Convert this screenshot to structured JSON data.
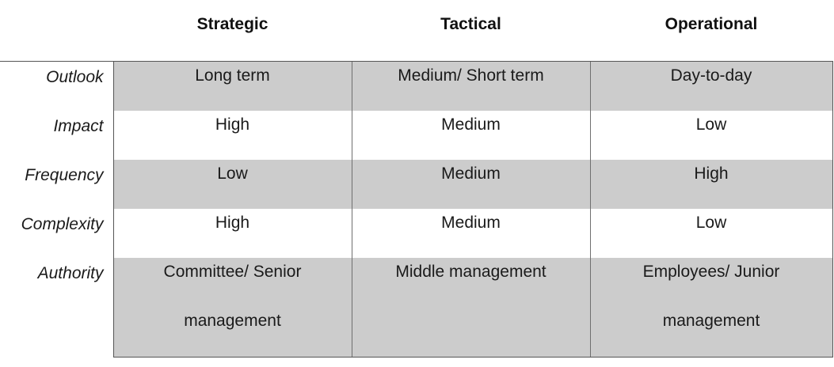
{
  "table": {
    "headers": [
      "",
      "Strategic",
      "Tactical",
      "Operational"
    ],
    "rows": [
      {
        "label": "Outlook",
        "cells": [
          "Long term",
          "Medium/ Short term",
          "Day-to-day"
        ],
        "shaded": true
      },
      {
        "label": "Impact",
        "cells": [
          "High",
          "Medium",
          "Low"
        ],
        "shaded": false
      },
      {
        "label": "Frequency",
        "cells": [
          "Low",
          "Medium",
          "High"
        ],
        "shaded": true
      },
      {
        "label": "Complexity",
        "cells": [
          "High",
          "Medium",
          "Low"
        ],
        "shaded": false
      },
      {
        "label": "Authority",
        "cells": [
          [
            "Committee/ Senior",
            "management"
          ],
          [
            "Middle management"
          ],
          [
            "Employees/ Junior",
            "management"
          ]
        ],
        "shaded": true
      }
    ]
  },
  "colors": {
    "shade": "#cccccc",
    "border": "#555555",
    "text": "#1a1a1a"
  }
}
